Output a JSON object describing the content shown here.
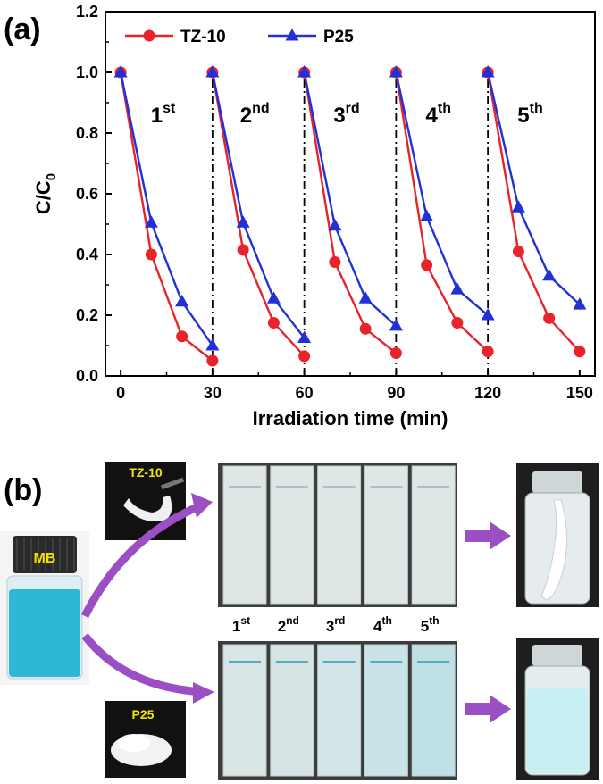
{
  "panel_a": {
    "label": "(a)"
  },
  "panel_b": {
    "label": "(b)",
    "vial_label": "MB",
    "photo_tz10_label": "TZ-10",
    "photo_p25_label": "P25",
    "cycle_labels": [
      {
        "base": "1",
        "sup": "st"
      },
      {
        "base": "2",
        "sup": "nd"
      },
      {
        "base": "3",
        "sup": "rd"
      },
      {
        "base": "4",
        "sup": "th"
      },
      {
        "base": "5",
        "sup": "th"
      }
    ],
    "colors": {
      "arrow": "#9b4fc4",
      "mb_solution": "#2fb8d6",
      "cap": "#2a2a2a",
      "tz10_cuvette": "#dfe6e6",
      "p25_cuvette_tints": [
        "#d9e4e4",
        "#d7e4e6",
        "#d2e5e8",
        "#c9e3e8",
        "#bfe1e6"
      ]
    }
  },
  "chart_data": {
    "type": "line",
    "title": "",
    "xlabel": "Irradiation time (min)",
    "ylabel": "C/C0",
    "xlim": [
      -5,
      155
    ],
    "ylim": [
      0,
      1.2
    ],
    "xticks": [
      0,
      30,
      60,
      90,
      120,
      150
    ],
    "yticks": [
      0.0,
      0.2,
      0.4,
      0.6,
      0.8,
      1.0,
      1.2
    ],
    "x_tick_labels": [
      "0",
      "30",
      "60",
      "90",
      "120",
      "150"
    ],
    "y_tick_labels": [
      "0.0",
      "0.2",
      "0.4",
      "0.6",
      "0.8",
      "1.0",
      "1.2"
    ],
    "legend_position": "top-left",
    "cycle_dividers_x": [
      30,
      60,
      90,
      120
    ],
    "cycle_annotations": [
      {
        "base": "1",
        "sup": "st",
        "x": 15
      },
      {
        "base": "2",
        "sup": "nd",
        "x": 45
      },
      {
        "base": "3",
        "sup": "rd",
        "x": 75
      },
      {
        "base": "4",
        "sup": "th",
        "x": 105
      },
      {
        "base": "5",
        "sup": "th",
        "x": 135
      }
    ],
    "series": [
      {
        "name": "TZ-10",
        "color": "#e8232a",
        "marker": "circle",
        "segments": [
          [
            [
              0,
              1.0
            ],
            [
              10,
              0.4
            ],
            [
              20,
              0.13
            ],
            [
              30,
              0.05
            ]
          ],
          [
            [
              30,
              1.0
            ],
            [
              40,
              0.415
            ],
            [
              50,
              0.175
            ],
            [
              60,
              0.065
            ]
          ],
          [
            [
              60,
              1.0
            ],
            [
              70,
              0.375
            ],
            [
              80,
              0.155
            ],
            [
              90,
              0.075
            ]
          ],
          [
            [
              90,
              1.0
            ],
            [
              100,
              0.365
            ],
            [
              110,
              0.175
            ],
            [
              120,
              0.08
            ]
          ],
          [
            [
              120,
              1.0
            ],
            [
              130,
              0.41
            ],
            [
              140,
              0.19
            ],
            [
              150,
              0.08
            ]
          ]
        ]
      },
      {
        "name": "P25",
        "color": "#2131d6",
        "marker": "triangle",
        "segments": [
          [
            [
              0,
              1.0
            ],
            [
              10,
              0.505
            ],
            [
              20,
              0.245
            ],
            [
              30,
              0.1
            ]
          ],
          [
            [
              30,
              1.0
            ],
            [
              40,
              0.505
            ],
            [
              50,
              0.255
            ],
            [
              60,
              0.125
            ]
          ],
          [
            [
              60,
              1.0
            ],
            [
              70,
              0.495
            ],
            [
              80,
              0.255
            ],
            [
              90,
              0.165
            ]
          ],
          [
            [
              90,
              1.0
            ],
            [
              100,
              0.525
            ],
            [
              110,
              0.285
            ],
            [
              120,
              0.2
            ]
          ],
          [
            [
              120,
              1.0
            ],
            [
              130,
              0.555
            ],
            [
              140,
              0.33
            ],
            [
              150,
              0.235
            ]
          ]
        ]
      }
    ]
  }
}
